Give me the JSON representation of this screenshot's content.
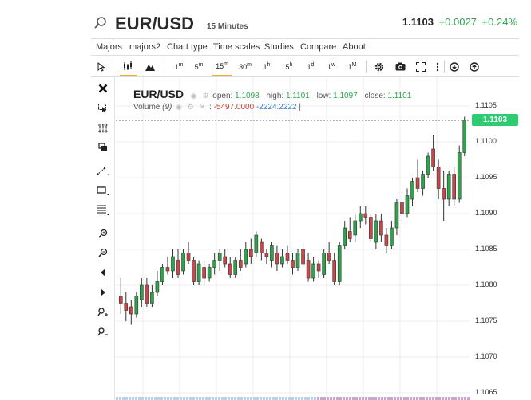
{
  "header": {
    "symbol": "EUR/USD",
    "interval": "15 Minutes",
    "last": "1.1103",
    "change": "+0.0027",
    "change_pct": "+0.24%"
  },
  "menu": [
    "Majors",
    "majors2",
    "Chart type",
    "Time scales",
    "Studies",
    "Compare",
    "About"
  ],
  "toolbar": {
    "periods": [
      "1m",
      "5m",
      "15m",
      "30m",
      "1h",
      "5h",
      "1d",
      "1w",
      "1M"
    ],
    "active_period": "15m"
  },
  "left_tools": [
    "close-icon",
    "cursor-icon",
    "crosshair-icon",
    "copy-icon",
    "trendline-icon",
    "rectangle-icon",
    "fibonacci-icon",
    "zoom-in-icon",
    "zoom-out-icon",
    "scroll-left-icon",
    "scroll-right-icon",
    "zoom-in-time-icon",
    "zoom-out-time-icon"
  ],
  "legend": {
    "symbol": "EUR/USD",
    "open_label": "open:",
    "open": "1.1098",
    "high_label": "high:",
    "high": "1.1101",
    "low_label": "low:",
    "low": "1.1097",
    "close_label": "close:",
    "close": "1.1101",
    "volume_label": "Volume",
    "volume_period": "(9)",
    "volume_neg": "-5497.0000",
    "volume_pos": "-2224.2222"
  },
  "colors": {
    "up": "#2ea34b",
    "down": "#c9474a",
    "price_tag": "#2ecc71"
  },
  "chart_data": {
    "type": "candlestick",
    "yticks": [
      "1.1105",
      "1.1100",
      "1.1095",
      "1.1090",
      "1.1085",
      "1.1080",
      "1.1075",
      "1.1070",
      "1.1065"
    ],
    "ylim": [
      1.1064,
      1.1109
    ],
    "last_price": "1.1103",
    "grid": true,
    "candles": [
      {
        "o": 1.10785,
        "h": 1.1081,
        "l": 1.1076,
        "c": 1.10775
      },
      {
        "o": 1.10775,
        "h": 1.1079,
        "l": 1.1075,
        "c": 1.10765
      },
      {
        "o": 1.1077,
        "h": 1.1078,
        "l": 1.10745,
        "c": 1.1076
      },
      {
        "o": 1.1076,
        "h": 1.1079,
        "l": 1.10755,
        "c": 1.10785
      },
      {
        "o": 1.1078,
        "h": 1.1081,
        "l": 1.1077,
        "c": 1.108
      },
      {
        "o": 1.108,
        "h": 1.1081,
        "l": 1.1077,
        "c": 1.10775
      },
      {
        "o": 1.10775,
        "h": 1.108,
        "l": 1.1077,
        "c": 1.1079
      },
      {
        "o": 1.1079,
        "h": 1.1082,
        "l": 1.10785,
        "c": 1.10805
      },
      {
        "o": 1.10805,
        "h": 1.1083,
        "l": 1.108,
        "c": 1.10825
      },
      {
        "o": 1.10825,
        "h": 1.1084,
        "l": 1.10815,
        "c": 1.1082
      },
      {
        "o": 1.1082,
        "h": 1.1085,
        "l": 1.1081,
        "c": 1.1084
      },
      {
        "o": 1.10835,
        "h": 1.1085,
        "l": 1.1081,
        "c": 1.10815
      },
      {
        "o": 1.1082,
        "h": 1.1085,
        "l": 1.10815,
        "c": 1.10845
      },
      {
        "o": 1.10845,
        "h": 1.1086,
        "l": 1.1083,
        "c": 1.10835
      },
      {
        "o": 1.10835,
        "h": 1.1084,
        "l": 1.108,
        "c": 1.10805
      },
      {
        "o": 1.10805,
        "h": 1.10835,
        "l": 1.108,
        "c": 1.1083
      },
      {
        "o": 1.10825,
        "h": 1.10835,
        "l": 1.108,
        "c": 1.1081
      },
      {
        "o": 1.1081,
        "h": 1.1083,
        "l": 1.10805,
        "c": 1.10825
      },
      {
        "o": 1.10825,
        "h": 1.10845,
        "l": 1.10815,
        "c": 1.10835
      },
      {
        "o": 1.10835,
        "h": 1.1085,
        "l": 1.1082,
        "c": 1.10845
      },
      {
        "o": 1.1084,
        "h": 1.1085,
        "l": 1.10825,
        "c": 1.1083
      },
      {
        "o": 1.1083,
        "h": 1.1084,
        "l": 1.1081,
        "c": 1.10815
      },
      {
        "o": 1.10815,
        "h": 1.1084,
        "l": 1.1081,
        "c": 1.10835
      },
      {
        "o": 1.10835,
        "h": 1.1085,
        "l": 1.1082,
        "c": 1.10825
      },
      {
        "o": 1.1083,
        "h": 1.1086,
        "l": 1.10825,
        "c": 1.1085
      },
      {
        "o": 1.1085,
        "h": 1.10865,
        "l": 1.1083,
        "c": 1.1084
      },
      {
        "o": 1.10845,
        "h": 1.10875,
        "l": 1.1084,
        "c": 1.1087
      },
      {
        "o": 1.1086,
        "h": 1.10865,
        "l": 1.10835,
        "c": 1.10845
      },
      {
        "o": 1.10845,
        "h": 1.1085,
        "l": 1.1083,
        "c": 1.1084
      },
      {
        "o": 1.10835,
        "h": 1.1086,
        "l": 1.10825,
        "c": 1.10855
      },
      {
        "o": 1.10845,
        "h": 1.10855,
        "l": 1.1082,
        "c": 1.1083
      },
      {
        "o": 1.1083,
        "h": 1.1085,
        "l": 1.10825,
        "c": 1.1084
      },
      {
        "o": 1.10845,
        "h": 1.10855,
        "l": 1.1083,
        "c": 1.10835
      },
      {
        "o": 1.10835,
        "h": 1.10845,
        "l": 1.10815,
        "c": 1.10825
      },
      {
        "o": 1.10825,
        "h": 1.1085,
        "l": 1.1082,
        "c": 1.10845
      },
      {
        "o": 1.1085,
        "h": 1.1086,
        "l": 1.10825,
        "c": 1.1083
      },
      {
        "o": 1.10835,
        "h": 1.10845,
        "l": 1.10805,
        "c": 1.1081
      },
      {
        "o": 1.1081,
        "h": 1.1084,
        "l": 1.10805,
        "c": 1.1083
      },
      {
        "o": 1.1083,
        "h": 1.10835,
        "l": 1.1081,
        "c": 1.1082
      },
      {
        "o": 1.10815,
        "h": 1.1085,
        "l": 1.1081,
        "c": 1.10845
      },
      {
        "o": 1.10845,
        "h": 1.1086,
        "l": 1.1083,
        "c": 1.10835
      },
      {
        "o": 1.10835,
        "h": 1.10845,
        "l": 1.108,
        "c": 1.10805
      },
      {
        "o": 1.10805,
        "h": 1.1086,
        "l": 1.108,
        "c": 1.10855
      },
      {
        "o": 1.10855,
        "h": 1.1089,
        "l": 1.1085,
        "c": 1.1088
      },
      {
        "o": 1.10875,
        "h": 1.10895,
        "l": 1.1086,
        "c": 1.10865
      },
      {
        "o": 1.1087,
        "h": 1.109,
        "l": 1.1086,
        "c": 1.1089
      },
      {
        "o": 1.1089,
        "h": 1.1091,
        "l": 1.1088,
        "c": 1.109
      },
      {
        "o": 1.109,
        "h": 1.1091,
        "l": 1.10885,
        "c": 1.10895
      },
      {
        "o": 1.10895,
        "h": 1.109,
        "l": 1.1086,
        "c": 1.10865
      },
      {
        "o": 1.1086,
        "h": 1.109,
        "l": 1.1085,
        "c": 1.1089
      },
      {
        "o": 1.1089,
        "h": 1.109,
        "l": 1.1086,
        "c": 1.1087
      },
      {
        "o": 1.1087,
        "h": 1.1088,
        "l": 1.10845,
        "c": 1.10855
      },
      {
        "o": 1.10855,
        "h": 1.1089,
        "l": 1.1085,
        "c": 1.1088
      },
      {
        "o": 1.1088,
        "h": 1.1092,
        "l": 1.1087,
        "c": 1.10915
      },
      {
        "o": 1.10915,
        "h": 1.1093,
        "l": 1.1089,
        "c": 1.109
      },
      {
        "o": 1.109,
        "h": 1.10935,
        "l": 1.10895,
        "c": 1.10925
      },
      {
        "o": 1.1092,
        "h": 1.1095,
        "l": 1.1091,
        "c": 1.10945
      },
      {
        "o": 1.1095,
        "h": 1.10975,
        "l": 1.1093,
        "c": 1.10935
      },
      {
        "o": 1.10935,
        "h": 1.1096,
        "l": 1.10925,
        "c": 1.10955
      },
      {
        "o": 1.10955,
        "h": 1.10985,
        "l": 1.1095,
        "c": 1.1098
      },
      {
        "o": 1.1099,
        "h": 1.1101,
        "l": 1.1096,
        "c": 1.10965
      },
      {
        "o": 1.10965,
        "h": 1.10975,
        "l": 1.1092,
        "c": 1.10935
      },
      {
        "o": 1.10935,
        "h": 1.1096,
        "l": 1.1089,
        "c": 1.1092
      },
      {
        "o": 1.1092,
        "h": 1.1096,
        "l": 1.1091,
        "c": 1.10955
      },
      {
        "o": 1.10955,
        "h": 1.10965,
        "l": 1.1091,
        "c": 1.1092
      },
      {
        "o": 1.1092,
        "h": 1.10995,
        "l": 1.10915,
        "c": 1.10985
      },
      {
        "o": 1.10985,
        "h": 1.11035,
        "l": 1.1098,
        "c": 1.1103
      }
    ]
  }
}
